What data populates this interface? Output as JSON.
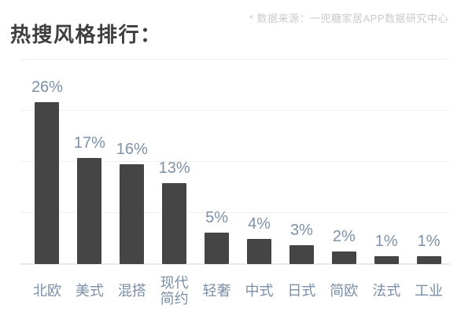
{
  "header": {
    "title": "热搜风格排行：",
    "source_note": "* 数据来源：一兜糖家居APP数据研究中心"
  },
  "chart_data": {
    "type": "bar",
    "title": "热搜风格排行",
    "categories": [
      "北欧",
      "美式",
      "混搭",
      "现代简约",
      "轻奢",
      "中式",
      "日式",
      "简欧",
      "法式",
      "工业"
    ],
    "values": [
      26,
      17,
      16,
      13,
      5,
      4,
      3,
      2,
      1,
      1
    ],
    "value_labels": [
      "26%",
      "17%",
      "16%",
      "13%",
      "5%",
      "4%",
      "3%",
      "2%",
      "1%",
      "1%"
    ],
    "unit": "%",
    "xlabel": "",
    "ylabel": "",
    "ylim": [
      0,
      33
    ],
    "grid": "horizontal-only",
    "legend": "none",
    "bar_color": "#454545",
    "value_label_color": "#7E91A8",
    "category_label_color": "#7B8FA6"
  }
}
